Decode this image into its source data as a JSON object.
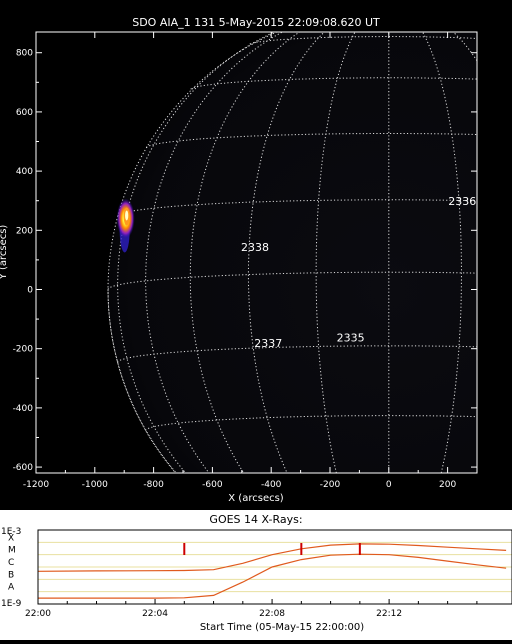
{
  "chart_data": [
    {
      "type": "scatter",
      "title": "SDO AIA_1 131  5-May-2015 22:09:08.620 UT",
      "xlabel": "X (arcsecs)",
      "ylabel": "Y (arcsecs)",
      "xlim": [
        -1200,
        300
      ],
      "ylim": [
        -620,
        870
      ],
      "x_ticks": [
        -1200,
        -1000,
        -800,
        -600,
        -400,
        -200,
        0,
        200
      ],
      "x_tick_labels": [
        "-1200",
        "-1000",
        "-800",
        "-600",
        "-400",
        "-200",
        "0",
        "200"
      ],
      "y_ticks": [
        -600,
        -400,
        -200,
        0,
        200,
        400,
        600,
        800
      ],
      "y_tick_labels": [
        "-600",
        "-400",
        "-200",
        "0",
        "200",
        "400",
        "600",
        "800"
      ],
      "solar_radius_arcsec": 955,
      "grid": "heliographic",
      "flare_location": {
        "x": -895,
        "y": 240
      },
      "active_regions": [
        {
          "label": "2338",
          "x": -455,
          "y": 130
        },
        {
          "label": "2336",
          "x": 250,
          "y": 285
        },
        {
          "label": "2337",
          "x": -410,
          "y": -195
        },
        {
          "label": "2335",
          "x": -130,
          "y": -175
        }
      ],
      "colors": {
        "background": "#000000",
        "frame": "#ffffff",
        "grid": "#ffffff",
        "flare_core": "#ffff80",
        "flare_mid": "#ff8000",
        "flare_outer": "#6020ff"
      }
    },
    {
      "type": "line",
      "title": "GOES 14 X-Rays:",
      "xlabel": "Start Time (05-May-15 22:00:00)",
      "ylabel": "",
      "y_scale": "log",
      "ylim": [
        1e-09,
        0.001
      ],
      "y_tick_labels": [
        "1E-9",
        "A",
        "B",
        "C",
        "M",
        "X",
        "1E-3"
      ],
      "x_ticks": [
        "22:00",
        "22:04",
        "22:08",
        "22:12"
      ],
      "series": [
        {
          "x": [
            "22:00",
            "22:02",
            "22:04",
            "22:05",
            "22:06",
            "22:07",
            "22:08",
            "22:09",
            "22:10",
            "22:11",
            "22:12",
            "22:13",
            "22:14",
            "22:15",
            "22:16"
          ],
          "values": [
            4.5e-07,
            4.8e-07,
            5e-07,
            5.2e-07,
            6e-07,
            2e-06,
            1e-05,
            3e-05,
            6e-05,
            7.5e-05,
            7e-05,
            5.5e-05,
            4e-05,
            3e-05,
            2.2e-05
          ]
        },
        {
          "x": [
            "22:00",
            "22:02",
            "22:04",
            "22:05",
            "22:06",
            "22:07",
            "22:08",
            "22:09",
            "22:10",
            "22:11",
            "22:12",
            "22:13",
            "22:14",
            "22:15",
            "22:16"
          ],
          "values": [
            3e-09,
            3e-09,
            3e-09,
            3.2e-09,
            5e-09,
            6e-08,
            1e-06,
            4e-06,
            9e-06,
            1.1e-05,
            1e-05,
            6e-06,
            3e-06,
            1.5e-06,
            8e-07
          ]
        }
      ],
      "markers": [
        "22:05",
        "22:09",
        "22:11"
      ],
      "colors": {
        "background": "#ffffff",
        "line": "#e05a1e",
        "marker": "#cc0000",
        "band": "#e8e0a0",
        "axis": "#000000"
      }
    }
  ]
}
